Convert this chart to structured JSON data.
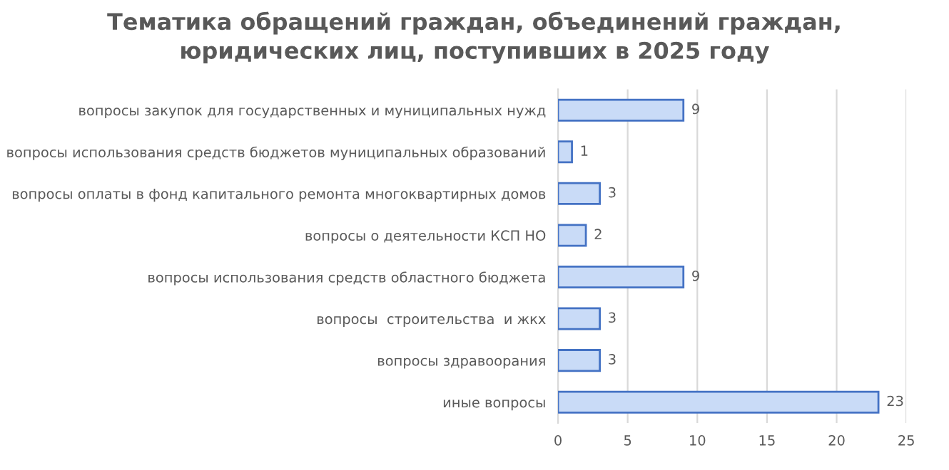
{
  "chart_data": {
    "type": "bar",
    "orientation": "horizontal",
    "title": "Тематика обращений граждан, объединений граждан,\nюридических лиц, поступивших в 2025 году",
    "categories": [
      "вопросы закупок для государственных и муниципальных нужд",
      "вопросы использования средств бюджетов муниципальных образований",
      "вопросы оплаты в фонд капитального ремонта многоквартирных домов",
      "вопросы о деятельности КСП НО",
      "вопросы использования средств областного бюджета",
      "вопросы  строительства  и жкх",
      "вопросы здравоорания",
      "иные вопросы"
    ],
    "values": [
      9,
      1,
      3,
      2,
      9,
      3,
      3,
      23
    ],
    "color": "#c9dbf7",
    "xlim": [
      0,
      25
    ],
    "xticks": [
      0,
      5,
      10,
      15,
      20,
      25
    ],
    "grid": "x",
    "data_labels": true
  }
}
